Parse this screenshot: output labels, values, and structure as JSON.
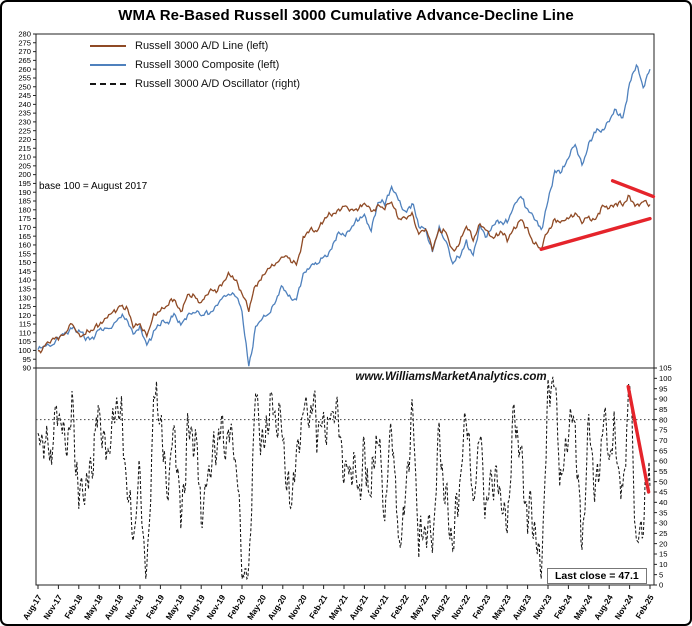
{
  "title": "WMA Re-Based Russell 3000 Cumulative Advance-Decline Line",
  "colors": {
    "annotation_red": "#e5242b",
    "ad_line_brown": "#8f4a25",
    "composite_blue": "#4f81bd",
    "oscillator_black": "#161616"
  },
  "legend": {
    "items": [
      {
        "label": "Russell 3000 A/D Line (left)",
        "color": "#8f4a25",
        "style": "solid"
      },
      {
        "label": "Russell 3000 Composite (left)",
        "color": "#4f81bd",
        "style": "solid"
      },
      {
        "label": "Russell 3000 A/D Oscillator (right)",
        "color": "#161616",
        "style": "dashed"
      }
    ]
  },
  "annotations_text": {
    "base_note": "base 100 =  August 2017",
    "watermark": "www.WilliamsMarketAnalytics.com",
    "last_close": "Last close =  47.1"
  },
  "chart_data": [
    {
      "type": "line",
      "panel": "top",
      "x_unit": "months since Aug-2017",
      "x_tick_positions": [
        0,
        3,
        6,
        9,
        12,
        15,
        18,
        21,
        24,
        27,
        30,
        33,
        36,
        39,
        42,
        45,
        48,
        51,
        54,
        57,
        60,
        63,
        66,
        69,
        72,
        75,
        78,
        81,
        84,
        87,
        90
      ],
      "x_tick_labels": [
        "Aug-17",
        "Nov-17",
        "Feb-18",
        "May-18",
        "Aug-18",
        "Nov-18",
        "Feb-19",
        "May-19",
        "Aug-19",
        "Nov-19",
        "Feb-20",
        "May-20",
        "Aug-20",
        "Nov-20",
        "Feb-21",
        "May-21",
        "Aug-21",
        "Nov-21",
        "Feb-22",
        "May-22",
        "Aug-22",
        "Nov-22",
        "Feb-23",
        "May-23",
        "Aug-23",
        "Nov-23",
        "Feb-24",
        "May-24",
        "Aug-24",
        "Nov-24",
        "Feb-25"
      ],
      "ylim": [
        90,
        280
      ],
      "ytick_step": 5,
      "axis_side": "left",
      "grid": false,
      "series": [
        {
          "name": "Russell 3000 A/D Line (left)",
          "color": "#8f4a25",
          "style": "solid",
          "values": [
            100,
            103,
            105,
            108,
            110,
            115,
            109,
            110,
            111,
            116,
            118,
            121,
            126,
            124,
            113,
            116,
            108,
            119,
            124,
            125,
            129,
            123,
            130,
            131,
            128,
            132,
            134,
            138,
            142,
            141,
            133,
            122,
            138,
            142,
            146,
            150,
            154,
            151,
            150,
            163,
            168,
            169,
            174,
            177,
            180,
            181,
            180,
            181,
            183,
            179,
            183,
            180,
            185,
            176,
            174,
            178,
            167,
            168,
            159,
            169,
            166,
            157,
            161,
            170,
            164,
            172,
            167,
            165,
            167,
            163,
            170,
            174,
            168,
            162,
            157,
            168,
            175,
            172,
            175,
            179,
            172,
            176,
            175,
            181,
            182,
            184,
            182,
            188,
            182,
            184,
            183
          ]
        },
        {
          "name": "Russell 3000 Composite (left)",
          "color": "#4f81bd",
          "style": "solid",
          "values": [
            100,
            102,
            104,
            107,
            109,
            114,
            110,
            107,
            108,
            111,
            112,
            115,
            118,
            118,
            110,
            112,
            103,
            111,
            115,
            116,
            121,
            113,
            121,
            122,
            119,
            122,
            124,
            129,
            133,
            132,
            121,
            92,
            112,
            118,
            122,
            128,
            136,
            131,
            128,
            143,
            149,
            148,
            153,
            157,
            165,
            166,
            170,
            173,
            177,
            169,
            183,
            185,
            193,
            185,
            179,
            184,
            170,
            170,
            156,
            169,
            163,
            149,
            153,
            163,
            153,
            170,
            166,
            171,
            173,
            174,
            181,
            188,
            181,
            174,
            169,
            186,
            200,
            203,
            210,
            216,
            206,
            217,
            224,
            226,
            231,
            236,
            233,
            251,
            262,
            251,
            260
          ]
        }
      ],
      "red_trendlines": [
        {
          "from": [
            84.5,
            196.5
          ],
          "to": [
            90.5,
            187.5
          ]
        },
        {
          "from": [
            74,
            157.5
          ],
          "to": [
            90,
            175
          ]
        }
      ]
    },
    {
      "type": "line",
      "panel": "bottom",
      "ylim": [
        0,
        105
      ],
      "ytick_step": 5,
      "axis_side": "right",
      "grid": false,
      "threshold_dotted_line": 80,
      "last_close": 47.1,
      "series": [
        {
          "name": "Russell 3000 A/D Oscillator (right)",
          "color": "#161616",
          "style": "dashed",
          "values": [
            60,
            75,
            68,
            80,
            72,
            88,
            35,
            55,
            62,
            75,
            70,
            78,
            82,
            60,
            20,
            45,
            10,
            85,
            78,
            55,
            70,
            30,
            80,
            65,
            35,
            60,
            55,
            75,
            80,
            55,
            15,
            8,
            85,
            70,
            90,
            75,
            80,
            40,
            50,
            92,
            85,
            70,
            88,
            75,
            80,
            65,
            55,
            45,
            70,
            35,
            75,
            40,
            72,
            20,
            45,
            75,
            25,
            35,
            12,
            80,
            45,
            10,
            55,
            85,
            30,
            82,
            35,
            45,
            55,
            25,
            78,
            72,
            30,
            25,
            15,
            85,
            97,
            55,
            70,
            78,
            25,
            72,
            45,
            85,
            55,
            75,
            45,
            92,
            25,
            35,
            47.1
          ]
        }
      ],
      "red_trendlines": [
        {
          "from": [
            86.8,
            96
          ],
          "to": [
            89.8,
            45
          ]
        }
      ]
    }
  ]
}
